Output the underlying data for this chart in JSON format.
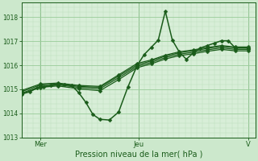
{
  "bg_color": "#cce8cc",
  "plot_bg_color": "#d8eed8",
  "grid_color_major": "#99cc99",
  "grid_color_minor": "#bbddbb",
  "line_color": "#1a5c1a",
  "ylim": [
    1013.0,
    1018.6
  ],
  "yticks": [
    1013,
    1014,
    1015,
    1016,
    1017,
    1018
  ],
  "xlabel": "Pression niveau de la mer( hPa )",
  "xlabel_color": "#1a5c1a",
  "xtick_labels": [
    "Mer",
    "Jeu",
    "V"
  ],
  "xtick_positions": [
    0.08,
    0.5,
    0.97
  ],
  "series": [
    {
      "x": [
        0.0,
        0.035,
        0.065,
        0.095,
        0.125,
        0.155,
        0.185,
        0.215,
        0.245,
        0.275,
        0.305,
        0.335,
        0.375,
        0.415,
        0.455,
        0.495,
        0.525,
        0.555,
        0.585,
        0.615,
        0.645,
        0.675,
        0.705,
        0.735,
        0.765,
        0.795,
        0.825,
        0.855,
        0.885,
        0.915,
        0.97
      ],
      "y": [
        1014.8,
        1014.9,
        1015.05,
        1015.1,
        1015.15,
        1015.2,
        1015.2,
        1015.15,
        1014.85,
        1014.45,
        1013.95,
        1013.75,
        1013.72,
        1014.05,
        1015.1,
        1016.0,
        1016.45,
        1016.75,
        1017.05,
        1018.25,
        1017.05,
        1016.55,
        1016.25,
        1016.52,
        1016.72,
        1016.82,
        1016.92,
        1017.02,
        1017.02,
        1016.72,
        1016.72
      ],
      "marker": "D",
      "markersize": 2.5,
      "linewidth": 1.1
    },
    {
      "x": [
        0.0,
        0.08,
        0.155,
        0.245,
        0.335,
        0.415,
        0.495,
        0.555,
        0.615,
        0.675,
        0.735,
        0.795,
        0.855,
        0.915,
        0.97
      ],
      "y": [
        1014.9,
        1015.18,
        1015.22,
        1015.12,
        1015.08,
        1015.55,
        1016.02,
        1016.18,
        1016.38,
        1016.52,
        1016.6,
        1016.7,
        1016.78,
        1016.72,
        1016.72
      ],
      "marker": "D",
      "markersize": 2.5,
      "linewidth": 0.9
    },
    {
      "x": [
        0.0,
        0.08,
        0.155,
        0.245,
        0.335,
        0.415,
        0.495,
        0.555,
        0.615,
        0.675,
        0.735,
        0.795,
        0.855,
        0.915,
        0.97
      ],
      "y": [
        1014.95,
        1015.22,
        1015.26,
        1015.16,
        1015.12,
        1015.6,
        1016.08,
        1016.22,
        1016.42,
        1016.56,
        1016.64,
        1016.74,
        1016.82,
        1016.76,
        1016.76
      ],
      "marker": "D",
      "markersize": 2.5,
      "linewidth": 0.9
    },
    {
      "x": [
        0.0,
        0.08,
        0.155,
        0.245,
        0.335,
        0.415,
        0.495,
        0.555,
        0.615,
        0.675,
        0.735,
        0.795,
        0.855,
        0.915,
        0.97
      ],
      "y": [
        1014.84,
        1015.12,
        1015.18,
        1015.08,
        1015.02,
        1015.48,
        1015.96,
        1016.12,
        1016.32,
        1016.46,
        1016.54,
        1016.64,
        1016.72,
        1016.66,
        1016.66
      ],
      "marker": "D",
      "markersize": 2.5,
      "linewidth": 0.9
    },
    {
      "x": [
        0.0,
        0.08,
        0.155,
        0.245,
        0.335,
        0.415,
        0.495,
        0.555,
        0.615,
        0.675,
        0.735,
        0.795,
        0.855,
        0.915,
        0.97
      ],
      "y": [
        1014.8,
        1015.08,
        1015.14,
        1015.02,
        1014.94,
        1015.4,
        1015.9,
        1016.06,
        1016.26,
        1016.4,
        1016.48,
        1016.58,
        1016.66,
        1016.6,
        1016.6
      ],
      "marker": "D",
      "markersize": 2.5,
      "linewidth": 0.9
    }
  ]
}
